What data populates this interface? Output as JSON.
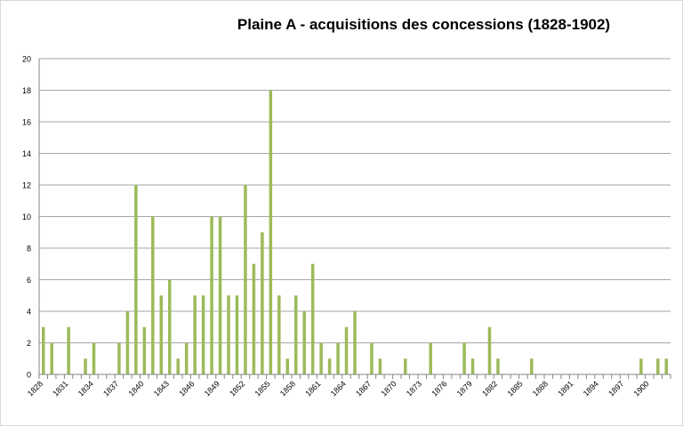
{
  "chart_data": {
    "type": "bar",
    "title": "Plaine A - acquisitions des concessions (1828-1902)",
    "xlabel": "",
    "ylabel": "",
    "ylim": [
      0,
      20
    ],
    "yticks": [
      0,
      2,
      4,
      6,
      8,
      10,
      12,
      14,
      16,
      18,
      20
    ],
    "xtick_labels": [
      "1828",
      "1831",
      "1834",
      "1837",
      "1840",
      "1843",
      "1846",
      "1849",
      "1852",
      "1855",
      "1858",
      "1861",
      "1864",
      "1867",
      "1870",
      "1873",
      "1876",
      "1879",
      "1882",
      "1885",
      "1888",
      "1891",
      "1894",
      "1897",
      "1900"
    ],
    "grid": true,
    "legend": "none",
    "bar_color": "#9bbb59",
    "categories": [
      "1828",
      "1829",
      "1830",
      "1831",
      "1832",
      "1833",
      "1834",
      "1835",
      "1836",
      "1837",
      "1838",
      "1839",
      "1840",
      "1841",
      "1842",
      "1843",
      "1844",
      "1845",
      "1846",
      "1847",
      "1848",
      "1849",
      "1850",
      "1851",
      "1852",
      "1853",
      "1854",
      "1855",
      "1856",
      "1857",
      "1858",
      "1859",
      "1860",
      "1861",
      "1862",
      "1863",
      "1864",
      "1865",
      "1866",
      "1867",
      "1868",
      "1869",
      "1870",
      "1871",
      "1872",
      "1873",
      "1874",
      "1875",
      "1876",
      "1877",
      "1878",
      "1879",
      "1880",
      "1881",
      "1882",
      "1883",
      "1884",
      "1885",
      "1886",
      "1887",
      "1888",
      "1889",
      "1890",
      "1891",
      "1892",
      "1893",
      "1894",
      "1895",
      "1896",
      "1897",
      "1898",
      "1899",
      "1900",
      "1901",
      "1902"
    ],
    "values": [
      3,
      2,
      0,
      3,
      0,
      1,
      2,
      0,
      0,
      2,
      4,
      12,
      3,
      10,
      5,
      6,
      1,
      2,
      5,
      5,
      10,
      10,
      5,
      5,
      12,
      7,
      9,
      18,
      5,
      1,
      5,
      4,
      7,
      2,
      1,
      2,
      3,
      4,
      0,
      2,
      1,
      0,
      0,
      1,
      0,
      0,
      2,
      0,
      0,
      0,
      2,
      1,
      0,
      3,
      1,
      0,
      0,
      0,
      1,
      0,
      0,
      0,
      0,
      0,
      0,
      0,
      0,
      0,
      0,
      0,
      0,
      1,
      0,
      1,
      1
    ]
  }
}
